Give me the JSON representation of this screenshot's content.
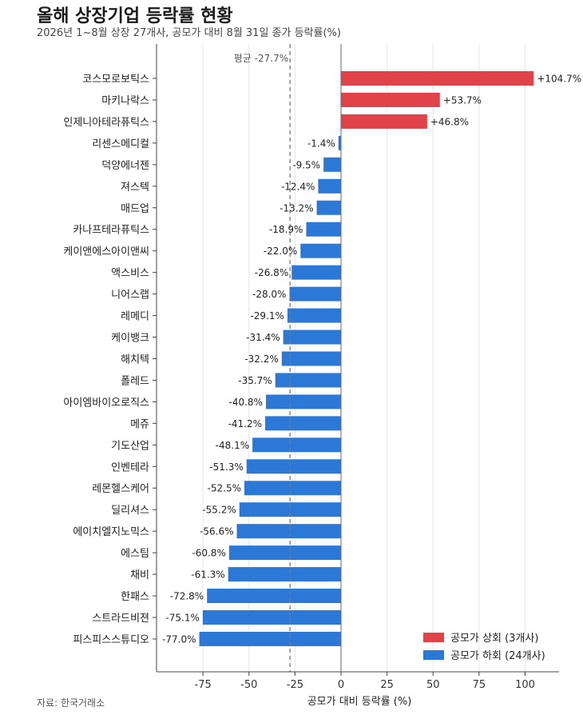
{
  "title": "올해 상장기업 등락률 현황",
  "subtitle": "2026년 1~8월 상장 27개사, 공모가 대비 8월 31일 종가 등락률(%)",
  "source": "자료: 한국거래소",
  "chart_data": {
    "type": "bar",
    "orientation": "horizontal",
    "xlabel": "공모가 대비 등락률 (%)",
    "xlim": [
      -100,
      118
    ],
    "xticks": [
      -75,
      -50,
      -25,
      0,
      25,
      50,
      75,
      100
    ],
    "grid": true,
    "mean": {
      "value": -27.7,
      "label": "평균 -27.7%"
    },
    "categories": [
      "코스모로보틱스",
      "마키나락스",
      "인제니아테라퓨틱스",
      "리센스메디컬",
      "덕양에너젠",
      "져스텍",
      "매드업",
      "카나프테라퓨틱스",
      "케이앤에스아이앤씨",
      "액스비스",
      "니어스랩",
      "레메디",
      "케이뱅크",
      "해치텍",
      "폴레드",
      "아이엠바이오로직스",
      "메쥬",
      "기도산업",
      "인벤테라",
      "레몬헬스케어",
      "딜리셔스",
      "에이치엘지노믹스",
      "에스팀",
      "채비",
      "한패스",
      "스트라드비젼",
      "피스피스스튜디오"
    ],
    "values": [
      104.7,
      53.7,
      46.8,
      -1.4,
      -9.5,
      -12.4,
      -13.2,
      -18.9,
      -22.0,
      -26.8,
      -28.0,
      -29.1,
      -31.4,
      -32.2,
      -35.7,
      -40.8,
      -41.2,
      -48.1,
      -51.3,
      -52.5,
      -55.2,
      -56.6,
      -60.8,
      -61.3,
      -72.8,
      -75.1,
      -77.0
    ],
    "labels": [
      "+104.7%",
      "+53.7%",
      "+46.8%",
      "-1.4%",
      "-9.5%",
      "-12.4%",
      "-13.2%",
      "-18.9%",
      "-22.0%",
      "-26.8%",
      "-28.0%",
      "-29.1%",
      "-31.4%",
      "-32.2%",
      "-35.7%",
      "-40.8%",
      "-41.2%",
      "-48.1%",
      "-51.3%",
      "-52.5%",
      "-55.2%",
      "-56.6%",
      "-60.8%",
      "-61.3%",
      "-72.8%",
      "-75.1%",
      "-77.0%"
    ],
    "colors": {
      "up": "#e0434a",
      "down": "#2b78d6",
      "mean_line": "#777777",
      "grid": "#e6e6e6"
    },
    "legend": {
      "placement": "bottom-right",
      "items": [
        {
          "label": "공모가 상회 (3개사)",
          "color": "#e0434a"
        },
        {
          "label": "공모가 하회 (24개사)",
          "color": "#2b78d6"
        }
      ]
    }
  }
}
